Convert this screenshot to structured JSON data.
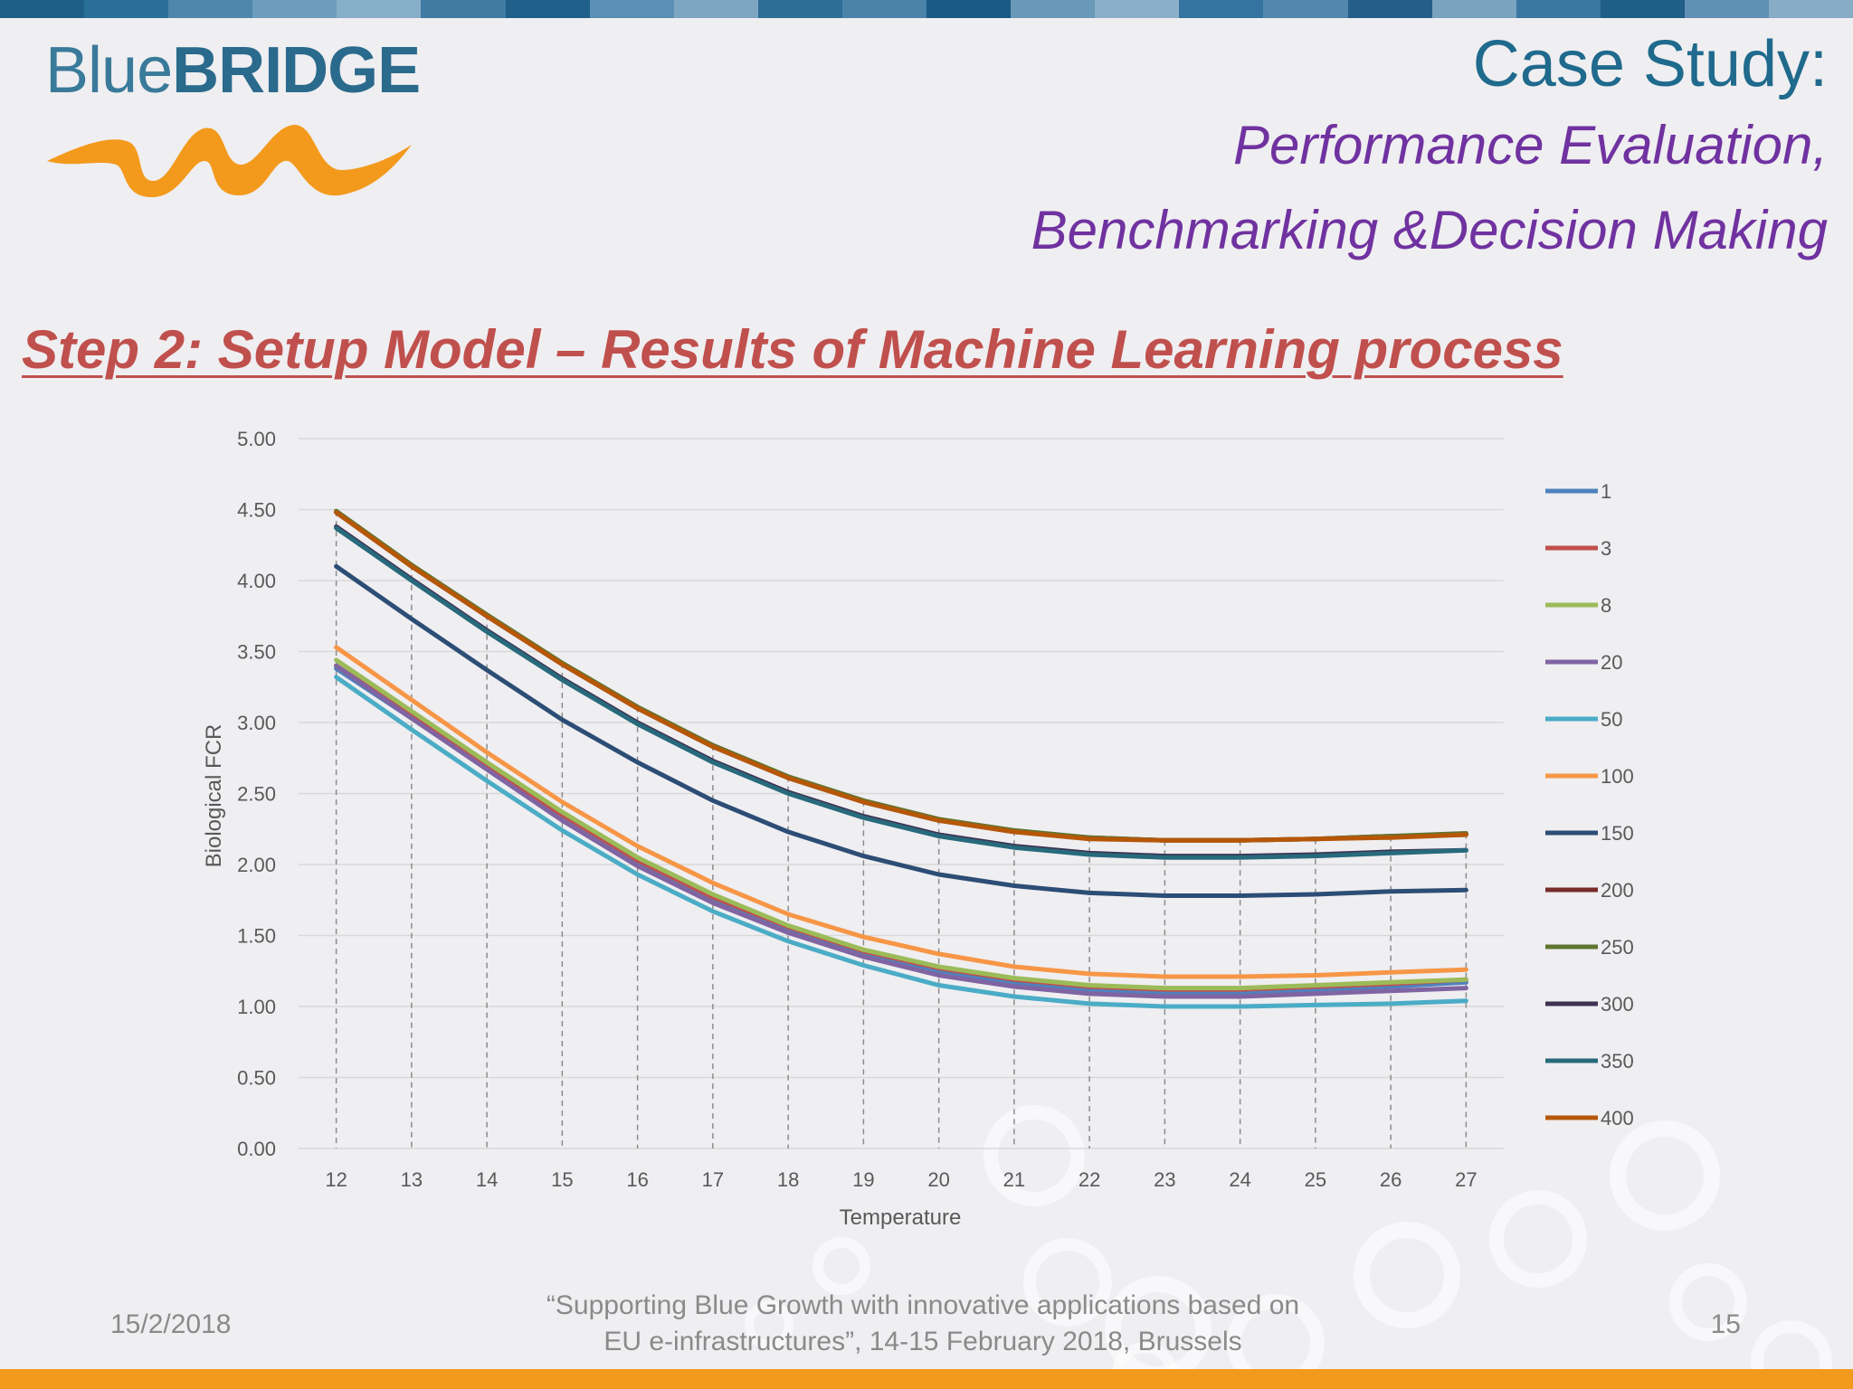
{
  "slide": {
    "logo_blue": "Blue",
    "logo_bridge": "BRIDGE",
    "title": "Case Study:",
    "subtitle_line1": "Performance Evaluation,",
    "subtitle_line2": "Benchmarking &Decision Making",
    "heading": "Step 2: Setup Model – Results of Machine Learning process",
    "footer_date": "15/2/2018",
    "footer_quote_line1": "“Supporting Blue Growth with innovative applications based on",
    "footer_quote_line2": "EU e-infrastructures”, 14-15 February 2018, Brussels",
    "page_number": "15"
  },
  "colors": {
    "title": "#1f6a8d",
    "subtitle": "#7032a0",
    "heading": "#c0504d",
    "bottom_band": "#f39a1c"
  },
  "chart_data": {
    "type": "line",
    "title": "",
    "xlabel": "Temperature",
    "ylabel": "Biological FCR",
    "ylim": [
      0,
      5
    ],
    "ytick_labels": [
      "0.00",
      "0.50",
      "1.00",
      "1.50",
      "2.00",
      "2.50",
      "3.00",
      "3.50",
      "4.00",
      "4.50",
      "5.00"
    ],
    "x": [
      12,
      13,
      14,
      15,
      16,
      17,
      18,
      19,
      20,
      21,
      22,
      23,
      24,
      25,
      26,
      27
    ],
    "grid": "horizontal gridlines, dashed vertical drop lines",
    "legend_position": "right",
    "series": [
      {
        "name": "1",
        "color": "#4f81bd",
        "values": [
          3.38,
          3.03,
          2.68,
          2.33,
          2.01,
          1.75,
          1.54,
          1.37,
          1.25,
          1.17,
          1.12,
          1.1,
          1.1,
          1.12,
          1.14,
          1.17
        ]
      },
      {
        "name": "3",
        "color": "#c0504d",
        "values": [
          3.4,
          3.05,
          2.7,
          2.35,
          2.03,
          1.77,
          1.56,
          1.39,
          1.27,
          1.19,
          1.14,
          1.12,
          1.12,
          1.14,
          1.16,
          1.19
        ]
      },
      {
        "name": "8",
        "color": "#9bbb59",
        "values": [
          3.44,
          3.08,
          2.72,
          2.37,
          2.05,
          1.79,
          1.57,
          1.4,
          1.28,
          1.2,
          1.15,
          1.13,
          1.13,
          1.15,
          1.17,
          1.19
        ]
      },
      {
        "name": "20",
        "color": "#8064a2",
        "values": [
          3.4,
          3.03,
          2.67,
          2.31,
          1.99,
          1.73,
          1.52,
          1.35,
          1.22,
          1.14,
          1.09,
          1.07,
          1.07,
          1.09,
          1.11,
          1.13
        ]
      },
      {
        "name": "50",
        "color": "#4bacc6",
        "values": [
          3.32,
          2.95,
          2.59,
          2.24,
          1.93,
          1.67,
          1.46,
          1.29,
          1.15,
          1.07,
          1.02,
          1.0,
          1.0,
          1.01,
          1.02,
          1.04
        ]
      },
      {
        "name": "100",
        "color": "#f79646",
        "values": [
          3.53,
          3.16,
          2.79,
          2.44,
          2.13,
          1.87,
          1.65,
          1.49,
          1.37,
          1.28,
          1.23,
          1.21,
          1.21,
          1.22,
          1.24,
          1.26
        ]
      },
      {
        "name": "150",
        "color": "#2c4d75",
        "values": [
          4.1,
          3.73,
          3.37,
          3.02,
          2.72,
          2.45,
          2.23,
          2.06,
          1.93,
          1.85,
          1.8,
          1.78,
          1.78,
          1.79,
          1.81,
          1.82
        ]
      },
      {
        "name": "200",
        "color": "#772c2a",
        "values": [
          4.48,
          4.1,
          3.75,
          3.41,
          3.1,
          2.83,
          2.61,
          2.44,
          2.31,
          2.23,
          2.19,
          2.17,
          2.17,
          2.18,
          2.2,
          2.21
        ]
      },
      {
        "name": "250",
        "color": "#5f7530",
        "values": [
          4.49,
          4.11,
          3.76,
          3.42,
          3.11,
          2.84,
          2.62,
          2.45,
          2.32,
          2.24,
          2.19,
          2.17,
          2.17,
          2.18,
          2.2,
          2.22
        ]
      },
      {
        "name": "300",
        "color": "#3f3151",
        "values": [
          4.38,
          4.01,
          3.65,
          3.31,
          3.0,
          2.73,
          2.51,
          2.34,
          2.21,
          2.13,
          2.08,
          2.06,
          2.06,
          2.07,
          2.09,
          2.1
        ]
      },
      {
        "name": "350",
        "color": "#276a7c",
        "values": [
          4.37,
          4.0,
          3.64,
          3.3,
          2.99,
          2.72,
          2.5,
          2.33,
          2.2,
          2.12,
          2.07,
          2.05,
          2.05,
          2.06,
          2.08,
          2.1
        ]
      },
      {
        "name": "400",
        "color": "#b65708",
        "values": [
          4.48,
          4.1,
          3.75,
          3.41,
          3.1,
          2.83,
          2.61,
          2.44,
          2.31,
          2.23,
          2.18,
          2.17,
          2.17,
          2.18,
          2.19,
          2.21
        ]
      }
    ]
  }
}
